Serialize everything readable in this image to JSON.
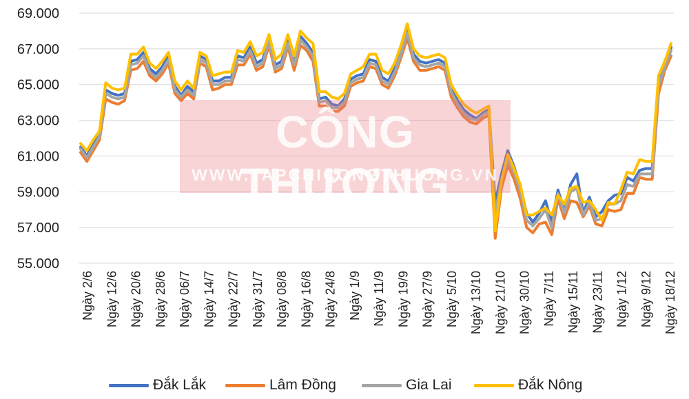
{
  "chart_data": {
    "type": "line",
    "title": "",
    "xlabel": "",
    "ylabel": "",
    "ylim": [
      55000,
      69000
    ],
    "y_ticks": [
      "55.000",
      "57.000",
      "59.000",
      "61.000",
      "63.000",
      "65.000",
      "67.000",
      "69.000"
    ],
    "x_tick_labels": [
      "Ngày 2/6",
      "Ngày 12/6",
      "Ngày 20/6",
      "Ngày 28/6",
      "Ngày 06/7",
      "Ngày 14/7",
      "Ngày 22/7",
      "Ngày 31/7",
      "Ngày 08/8",
      "Ngày 16/8",
      "Ngày 24/8",
      "Ngày 1/9",
      "Ngày 11/9",
      "Ngày 19/9",
      "Ngày 27/9",
      "Ngày 5/10",
      "Ngày 13/10",
      "Ngày 21/10",
      "Ngày 30/10",
      "Ngày 7/11",
      "Ngày 15/11",
      "Ngày 23/11",
      "Ngày 1/12",
      "Ngày 9/12",
      "Ngày 18/12"
    ],
    "grid": true,
    "legend_position": "bottom",
    "series": [
      {
        "name": "Đắk Lắk",
        "color": "#4472C4",
        "values": [
          61500,
          61000,
          61700,
          62200,
          64700,
          64500,
          64400,
          64500,
          66300,
          66400,
          66800,
          65900,
          65600,
          66000,
          66600,
          64900,
          64400,
          64900,
          64600,
          66600,
          66400,
          65200,
          65200,
          65400,
          65400,
          66600,
          66500,
          67100,
          66200,
          66400,
          67600,
          66100,
          66300,
          67500,
          66300,
          67700,
          67300,
          66800,
          64200,
          64300,
          63900,
          63800,
          64200,
          65300,
          65500,
          65600,
          66400,
          66300,
          65400,
          65200,
          65900,
          66900,
          68100,
          66700,
          66300,
          66200,
          66300,
          66400,
          66200,
          64800,
          64100,
          63600,
          63300,
          63100,
          63400,
          63600,
          58400,
          60000,
          61300,
          60400,
          59300,
          57800,
          57300,
          57800,
          58500,
          57300,
          59100,
          57900,
          59400,
          60000,
          57800,
          58700,
          57600,
          57900,
          58500,
          58800,
          58900,
          59800,
          59600,
          60200,
          60300,
          60300,
          65300,
          66300,
          67100
        ]
      },
      {
        "name": "Lâm Đồng",
        "color": "#ED7D31",
        "values": [
          61200,
          60700,
          61300,
          61900,
          64200,
          64000,
          63900,
          64100,
          65800,
          65900,
          66300,
          65500,
          65200,
          65600,
          66200,
          64500,
          64100,
          64500,
          64200,
          66200,
          66000,
          64700,
          64800,
          65000,
          65000,
          66100,
          66100,
          66700,
          65800,
          66000,
          67200,
          65700,
          65900,
          67100,
          65800,
          67200,
          66900,
          66300,
          63800,
          63800,
          63500,
          63500,
          63800,
          64900,
          65100,
          65200,
          66000,
          65900,
          65000,
          64800,
          65500,
          66500,
          67600,
          66300,
          65800,
          65800,
          65900,
          66000,
          65800,
          64300,
          63700,
          63200,
          62900,
          62800,
          63100,
          63300,
          56400,
          59200,
          60500,
          59700,
          58600,
          57000,
          56700,
          57200,
          57300,
          56600,
          58600,
          57500,
          58500,
          58400,
          57600,
          58200,
          57200,
          57100,
          58000,
          57900,
          58000,
          58900,
          58900,
          59800,
          59700,
          59700,
          64500,
          65800,
          66600
        ]
      },
      {
        "name": "Gia Lai",
        "color": "#A5A5A5",
        "values": [
          61400,
          60900,
          61500,
          62100,
          64500,
          64300,
          64200,
          64300,
          66100,
          66200,
          66600,
          65700,
          65400,
          65800,
          66400,
          64700,
          64300,
          64700,
          64400,
          66400,
          66200,
          65000,
          65000,
          65200,
          65200,
          66400,
          66300,
          66900,
          66000,
          66200,
          67400,
          65900,
          66100,
          67300,
          66100,
          67500,
          67100,
          66600,
          64000,
          64100,
          63700,
          63700,
          64000,
          65100,
          65300,
          65400,
          66200,
          66100,
          65200,
          65000,
          65700,
          66700,
          67900,
          66500,
          66100,
          66000,
          66100,
          66200,
          66000,
          64600,
          63900,
          63400,
          63100,
          63000,
          63300,
          63500,
          57800,
          59700,
          60800,
          60100,
          59000,
          57400,
          57100,
          57500,
          58000,
          57000,
          58900,
          57800,
          59000,
          59200,
          57700,
          58400,
          57400,
          57500,
          58300,
          58300,
          58500,
          59400,
          59300,
          60000,
          60000,
          60000,
          64900,
          66000,
          66900
        ]
      },
      {
        "name": "Đắk Nông",
        "color": "#FFC000",
        "values": [
          61700,
          61300,
          61900,
          62400,
          65100,
          64800,
          64700,
          64800,
          66700,
          66700,
          67100,
          66200,
          65900,
          66300,
          66800,
          65200,
          64700,
          65200,
          64800,
          66800,
          66600,
          65500,
          65600,
          65700,
          65700,
          66900,
          66800,
          67400,
          66600,
          66800,
          67800,
          66400,
          66700,
          67800,
          66600,
          68000,
          67600,
          67300,
          64600,
          64600,
          64300,
          64200,
          64500,
          65600,
          65800,
          66000,
          66700,
          66700,
          65800,
          65600,
          66200,
          67200,
          68400,
          67000,
          66600,
          66500,
          66600,
          66700,
          66500,
          65000,
          64400,
          63900,
          63600,
          63400,
          63600,
          63800,
          56800,
          59600,
          61100,
          60300,
          59400,
          57700,
          57700,
          57900,
          58100,
          57700,
          58800,
          58300,
          59200,
          59300,
          58400,
          58500,
          58000,
          57400,
          58400,
          58300,
          59100,
          60100,
          60000,
          60800,
          60700,
          60700,
          65500,
          66300,
          67300
        ]
      }
    ]
  },
  "watermark": {
    "title": "CÔNG THƯƠNG",
    "url": "WWW.TAPCHICONGTHUONG.VN"
  }
}
